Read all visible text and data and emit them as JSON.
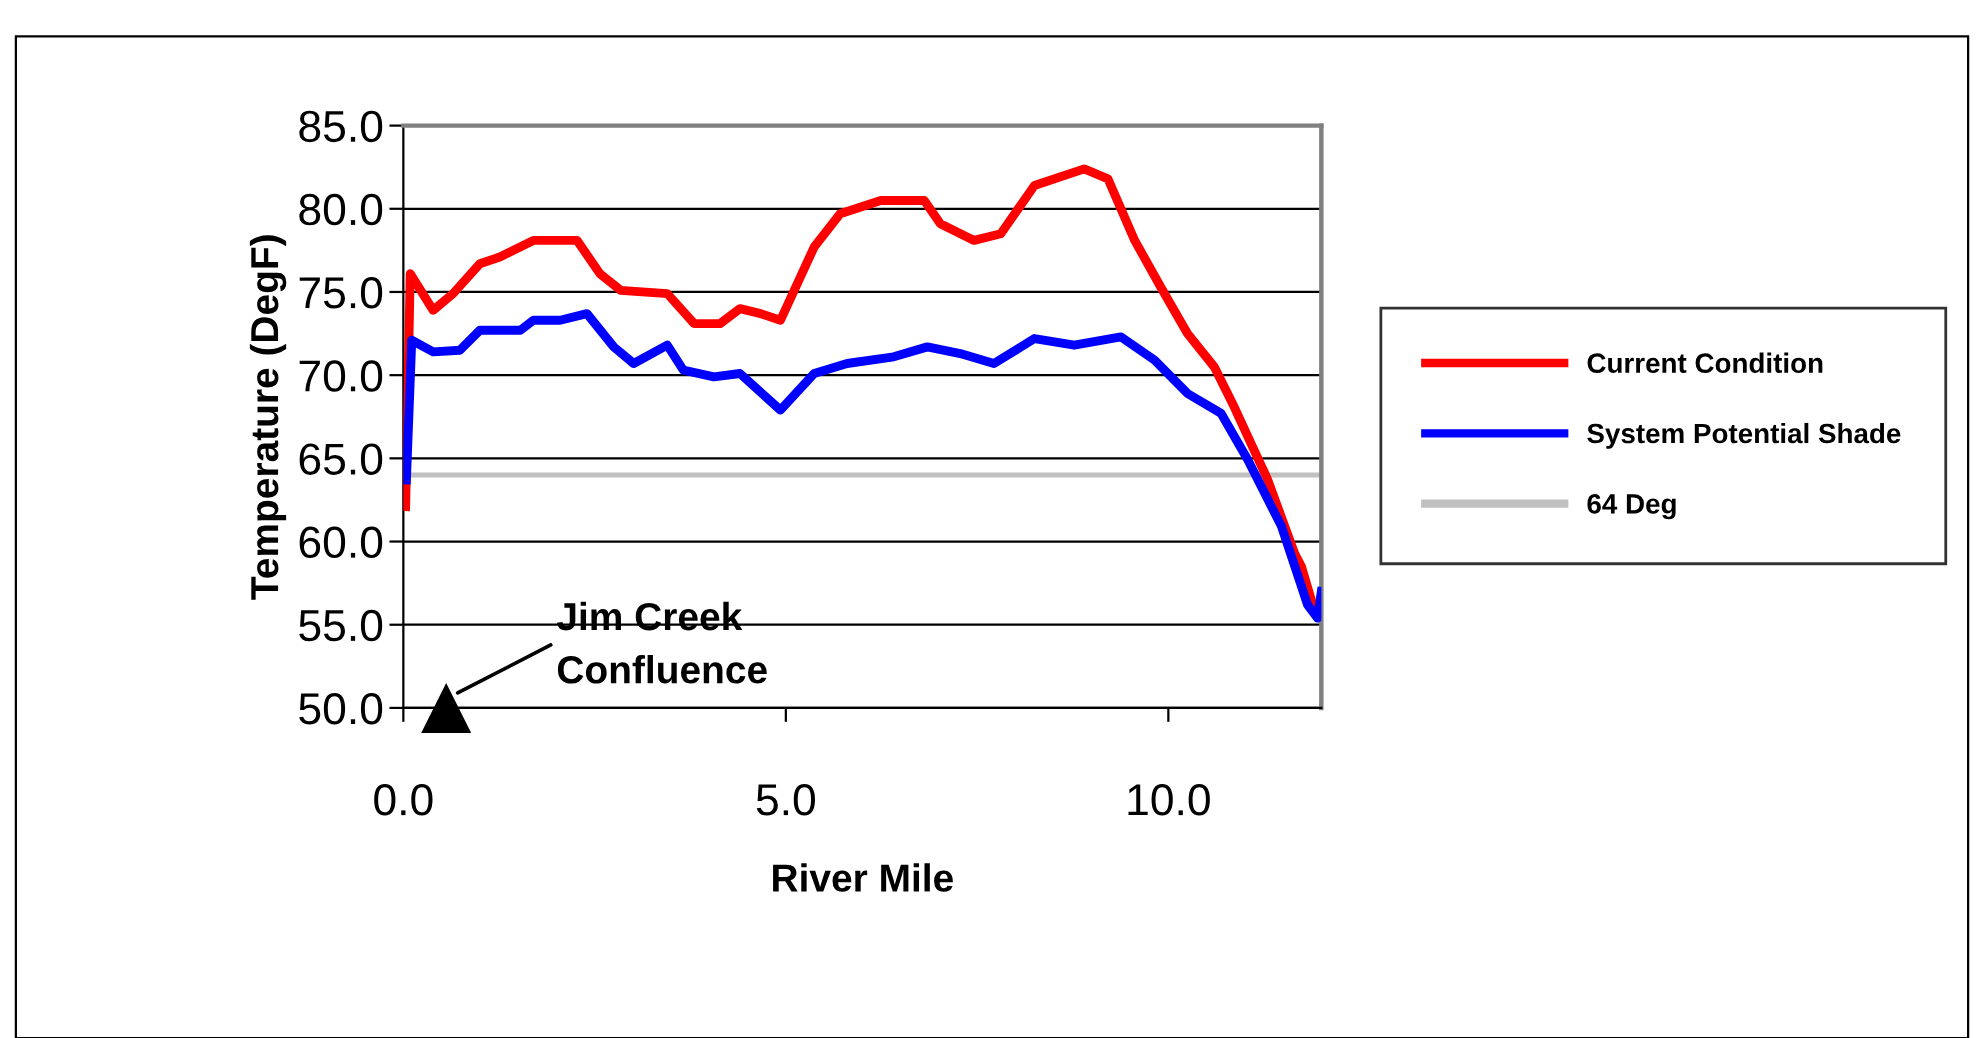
{
  "chart_data": {
    "type": "line",
    "xlabel": "River Mile",
    "ylabel": "Temperature (DegF)",
    "xlim": [
      0,
      12
    ],
    "xticks": [
      {
        "value": 0,
        "label": "0.0"
      },
      {
        "value": 5,
        "label": "5.0"
      },
      {
        "value": 10,
        "label": "10.0"
      }
    ],
    "ylim": [
      50,
      85
    ],
    "yticks": [
      {
        "value": 50,
        "label": "50.0"
      },
      {
        "value": 55,
        "label": "55.0"
      },
      {
        "value": 60,
        "label": "60.0"
      },
      {
        "value": 65,
        "label": "65.0"
      },
      {
        "value": 70,
        "label": "70.0"
      },
      {
        "value": 75,
        "label": "75.0"
      },
      {
        "value": 80,
        "label": "80.0"
      },
      {
        "value": 85,
        "label": "85.0"
      }
    ],
    "grid": "y",
    "legend": "right",
    "marker": "none",
    "line_style": "solid",
    "series": [
      {
        "name": "Current Condition",
        "color": "#ff0000",
        "x": [
          0.03,
          0.09,
          0.39,
          0.65,
          1.0,
          1.26,
          1.7,
          2.27,
          2.57,
          2.84,
          3.45,
          3.8,
          4.14,
          4.4,
          4.67,
          4.93,
          5.37,
          5.71,
          6.24,
          6.81,
          7.02,
          7.46,
          7.81,
          8.25,
          8.9,
          9.21,
          9.56,
          9.9,
          10.25,
          10.6,
          10.86,
          11.3,
          11.65,
          11.74,
          11.9
        ],
        "values": [
          62.1,
          76.1,
          73.9,
          74.9,
          76.7,
          77.1,
          78.1,
          78.1,
          76.1,
          75.1,
          74.9,
          73.1,
          73.1,
          74.0,
          73.7,
          73.3,
          77.7,
          79.7,
          80.5,
          80.5,
          79.1,
          78.1,
          78.5,
          81.4,
          82.4,
          81.8,
          78.1,
          75.3,
          72.5,
          70.5,
          68.1,
          63.7,
          59.3,
          58.5,
          56.0
        ]
      },
      {
        "name": "System Potential Shade",
        "color": "#0000ff",
        "x": [
          0.04,
          0.11,
          0.39,
          0.74,
          1.0,
          1.53,
          1.7,
          2.05,
          2.4,
          2.75,
          3.01,
          3.45,
          3.66,
          4.06,
          4.4,
          4.93,
          5.37,
          5.8,
          6.41,
          6.85,
          7.28,
          7.72,
          8.25,
          8.77,
          9.38,
          9.82,
          10.25,
          10.69,
          11.04,
          11.48,
          11.82,
          11.95,
          12.0
        ],
        "values": [
          63.7,
          72.1,
          71.4,
          71.5,
          72.7,
          72.7,
          73.3,
          73.3,
          73.7,
          71.7,
          70.7,
          71.8,
          70.3,
          69.9,
          70.1,
          67.9,
          70.1,
          70.7,
          71.1,
          71.7,
          71.3,
          70.7,
          72.2,
          71.8,
          72.3,
          70.9,
          68.9,
          67.7,
          64.9,
          60.9,
          56.2,
          55.4,
          57.0
        ]
      }
    ],
    "ref_lines": [
      {
        "axis": "y",
        "value": 64,
        "label": "64 Deg",
        "color": "#c0c0c0",
        "line_style": "solid"
      }
    ],
    "annotations": [
      {
        "text": "Jim Creek\nConfluence",
        "x": 0.56,
        "y": 50
      }
    ]
  }
}
